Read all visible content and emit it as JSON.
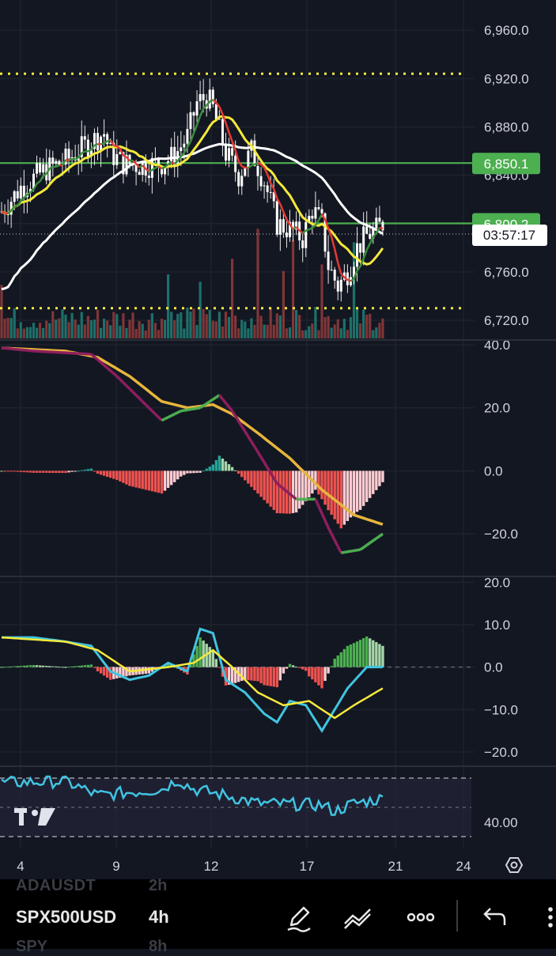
{
  "chart_data": {
    "type": "candlestick",
    "symbol": "SPX500USD",
    "interval": "4h",
    "x_ticks": [
      "4",
      "9",
      "12",
      "17",
      "21",
      "24"
    ],
    "price_panel": {
      "y_ticks": [
        "6,960.0",
        "6,920.0",
        "6,880.0",
        "6,840.0",
        "6,800.0",
        "6,760.0",
        "6,720.0"
      ],
      "ylim": [
        6705,
        6985
      ],
      "price_labels": [
        {
          "value": "6,850.1",
          "color": "#4caf50"
        },
        {
          "value": "6,800.2",
          "color": "#4caf50"
        }
      ],
      "countdown": "03:57:17",
      "horizontal_levels": [
        {
          "price": 6924,
          "style": "dotted",
          "color": "#f5e93b"
        },
        {
          "price": 6850.1,
          "style": "solid",
          "color": "#4caf50"
        },
        {
          "price": 6800.2,
          "style": "solid",
          "color": "#4caf50"
        },
        {
          "price": 6730,
          "style": "dotted",
          "color": "#f5e93b"
        }
      ]
    },
    "panel_2": {
      "y_ticks": [
        "40.0",
        "20.0",
        "0.0",
        "−20.0"
      ],
      "ylim": [
        -33,
        41
      ]
    },
    "panel_3": {
      "y_ticks": [
        "20.0",
        "10.0",
        "0.0",
        "−10.0",
        "−20.0"
      ],
      "ylim": [
        -23,
        21
      ]
    },
    "panel_4": {
      "y_ticks": [
        "40.00"
      ]
    }
  },
  "colors": {
    "background": "#131722",
    "grid": "#1e222d",
    "bull": "#26a69a",
    "bear": "#ef5350",
    "yellow": "#f5e93b",
    "white": "#ffffff",
    "red": "#e53935",
    "green": "#4caf50",
    "cyan": "#40c4e0",
    "magenta": "#8e1e5e",
    "gold": "#e7b53d"
  },
  "toolbar": {
    "ticker": "SPX500USD",
    "interval": "4h",
    "ghost_above_ticker": "ADAUSDT",
    "ghost_above_interval": "2h",
    "ghost_below_ticker": "SPY",
    "ghost_below_interval": "8h"
  }
}
